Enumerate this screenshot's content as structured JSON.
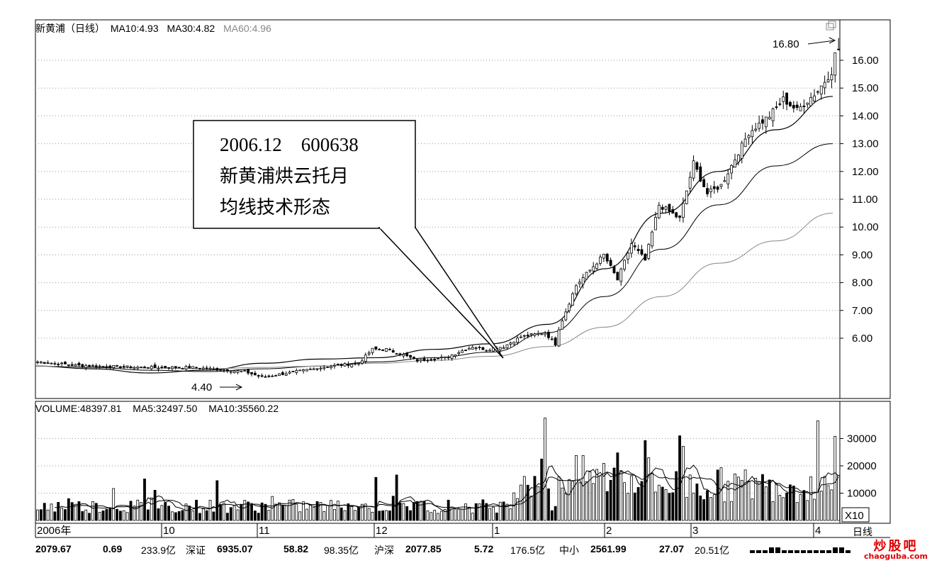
{
  "header": {
    "stock": "新黄浦（日线）",
    "ma10": "MA10:4.93",
    "ma30": "MA30:4.82",
    "ma60": "MA60:4.96"
  },
  "volume_header": {
    "vol": "VOLUME:48397.81",
    "ma5": "MA5:32497.50",
    "ma10": "MA10:35560.22"
  },
  "callout": {
    "line1": "2006.12    600638",
    "line2": "新黄浦烘云托月",
    "line3": "均线技术形态"
  },
  "annotations": {
    "high": "16.80",
    "low": "4.40"
  },
  "price_axis": [
    "16.00",
    "15.00",
    "14.00",
    "13.00",
    "12.00",
    "11.00",
    "10.00",
    "9.00",
    "8.00",
    "7.00",
    "6.00"
  ],
  "volume_axis": [
    "30000",
    "20000",
    "10000"
  ],
  "volume_unit": "X10",
  "period_label": "日线",
  "time_axis": [
    "2006年",
    "10",
    "11",
    "12",
    "1",
    "2",
    "3",
    "4"
  ],
  "status_bar": {
    "a1": "2079.67",
    "a2": "0.69",
    "a3": "233.9亿",
    "b0": "深证",
    "b1": "6935.07",
    "b2": "58.82",
    "b3": "98.35亿",
    "c0": "沪深",
    "c1": "2077.85",
    "c2": "5.72",
    "c3": "176.5亿",
    "d0": "中小",
    "d1": "2561.99",
    "d2": "27.07",
    "d3": "20.51亿"
  },
  "watermark": {
    "name": "炒股吧",
    "site": "chaoguba.com"
  },
  "colors": {
    "up": "#ffffff",
    "down": "#000000",
    "grid": "#999999",
    "accent": "#e00000"
  },
  "chart_data": {
    "type": "candlestick",
    "period": "daily",
    "x_range": [
      "2006-09",
      "2007-04"
    ],
    "y_range": [
      4.0,
      16.8
    ],
    "price_high": 16.8,
    "price_low": 4.4,
    "close_anchors": [
      [
        0,
        5.15
      ],
      [
        12,
        5.02
      ],
      [
        30,
        4.95
      ],
      [
        45,
        4.95
      ],
      [
        60,
        4.8
      ],
      [
        65,
        4.6
      ],
      [
        75,
        4.8
      ],
      [
        85,
        5.0
      ],
      [
        93,
        5.1
      ],
      [
        97,
        5.6
      ],
      [
        101,
        5.6
      ],
      [
        106,
        5.4
      ],
      [
        110,
        5.2
      ],
      [
        118,
        5.3
      ],
      [
        126,
        5.7
      ],
      [
        130,
        5.6
      ],
      [
        135,
        5.7
      ],
      [
        140,
        6.05
      ],
      [
        147,
        6.2
      ],
      [
        150,
        5.8
      ],
      [
        151,
        6.35
      ],
      [
        156,
        7.9
      ],
      [
        164,
        9.0
      ],
      [
        168,
        8.1
      ],
      [
        172,
        9.4
      ],
      [
        176,
        8.8
      ],
      [
        180,
        10.8
      ],
      [
        186,
        10.3
      ],
      [
        190,
        12.3
      ],
      [
        194,
        11.2
      ],
      [
        198,
        11.5
      ],
      [
        206,
        13.4
      ],
      [
        212,
        14.0
      ],
      [
        216,
        14.6
      ],
      [
        220,
        14.2
      ],
      [
        226,
        14.9
      ],
      [
        230,
        15.6
      ],
      [
        232,
        16.8
      ]
    ],
    "series": [
      {
        "name": "MA10",
        "values": [
          5.0,
          4.9,
          4.75,
          4.85,
          5.1,
          5.25,
          5.3,
          5.6,
          5.8,
          6.5,
          8.5,
          10.5,
          12.0,
          13.5,
          14.7
        ]
      },
      {
        "name": "MA30",
        "values": [
          5.0,
          4.95,
          4.85,
          4.8,
          4.9,
          5.0,
          5.15,
          5.3,
          5.5,
          6.2,
          7.5,
          9.2,
          10.8,
          12.2,
          13.0
        ]
      },
      {
        "name": "MA60",
        "values": [
          5.0,
          4.97,
          4.93,
          4.9,
          4.95,
          5.0,
          5.1,
          5.2,
          5.35,
          5.7,
          6.4,
          7.5,
          8.7,
          9.5,
          10.5
        ]
      }
    ],
    "volume": {
      "unit": "X10",
      "y_range": [
        0,
        38000
      ],
      "last": 48397.81,
      "ma5": 32497.5,
      "ma10": 35560.22
    }
  }
}
